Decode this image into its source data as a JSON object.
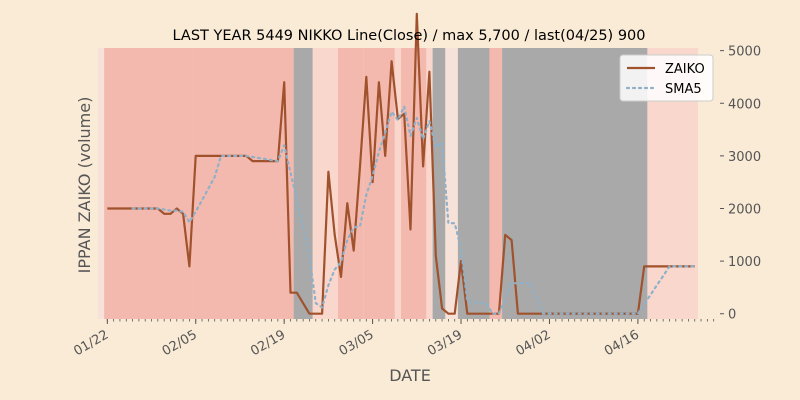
{
  "chart_data": {
    "type": "line",
    "title": "LAST YEAR 5449 NIKKO Line(Close) / max 5,700 / last(04/25) 900",
    "xlabel": "DATE",
    "ylabel": "IPPAN ZAIKO (volume)",
    "ylim": [
      -100,
      5050
    ],
    "yticks": [
      0,
      1000,
      2000,
      3000,
      4000,
      5000
    ],
    "yticklabels": [
      "0",
      "1000",
      "2000",
      "3000",
      "4000",
      "5000"
    ],
    "xticks": [
      "2023-01-22",
      "2023-02-05",
      "2023-02-19",
      "2023-03-05",
      "2023-03-19",
      "2023-04-02",
      "2023-04-16"
    ],
    "xticklabels": [
      "01/22",
      "02/05",
      "02/19",
      "03/05",
      "03/19",
      "04/02",
      "04/16"
    ],
    "xlim": [
      "2023-01-21",
      "2023-04-29"
    ],
    "grid": false,
    "legend_position": "top-right",
    "colors": {
      "zaiko": "#a0522d",
      "sma5": "#8fb0c9",
      "dark_band": "#a9a9a9",
      "red_band": "#f4b9ae",
      "light_band": "#f9d7cd",
      "pale_band": "#f6e2d8"
    },
    "series": [
      {
        "name": "ZAIKO",
        "x": [
          "2023-01-22",
          "2023-01-23",
          "2023-01-24",
          "2023-01-25",
          "2023-01-26",
          "2023-01-27",
          "2023-01-28",
          "2023-01-29",
          "2023-01-30",
          "2023-01-31",
          "2023-02-01",
          "2023-02-02",
          "2023-02-03",
          "2023-02-04",
          "2023-02-05",
          "2023-02-06",
          "2023-02-07",
          "2023-02-08",
          "2023-02-09",
          "2023-02-10",
          "2023-02-11",
          "2023-02-12",
          "2023-02-13",
          "2023-02-14",
          "2023-02-15",
          "2023-02-16",
          "2023-02-17",
          "2023-02-18",
          "2023-02-19",
          "2023-02-20",
          "2023-02-21",
          "2023-02-22",
          "2023-02-23",
          "2023-02-24",
          "2023-02-25",
          "2023-02-26",
          "2023-02-27",
          "2023-02-28",
          "2023-03-01",
          "2023-03-02",
          "2023-03-03",
          "2023-03-04",
          "2023-03-05",
          "2023-03-06",
          "2023-03-07",
          "2023-03-08",
          "2023-03-09",
          "2023-03-10",
          "2023-03-11",
          "2023-03-12",
          "2023-03-13",
          "2023-03-14",
          "2023-03-15",
          "2023-03-16",
          "2023-03-17",
          "2023-03-18",
          "2023-03-19",
          "2023-03-20",
          "2023-03-21",
          "2023-03-22",
          "2023-03-23",
          "2023-03-24",
          "2023-03-25",
          "2023-03-26",
          "2023-03-27",
          "2023-03-28",
          "2023-03-29",
          "2023-03-30",
          "2023-03-31",
          "2023-04-01",
          "2023-04-02",
          "2023-04-03",
          "2023-04-04",
          "2023-04-05",
          "2023-04-06",
          "2023-04-07",
          "2023-04-08",
          "2023-04-09",
          "2023-04-10",
          "2023-04-11",
          "2023-04-12",
          "2023-04-13",
          "2023-04-14",
          "2023-04-15",
          "2023-04-16",
          "2023-04-17",
          "2023-04-18",
          "2023-04-19",
          "2023-04-20",
          "2023-04-21",
          "2023-04-22",
          "2023-04-23",
          "2023-04-24",
          "2023-04-25"
        ],
        "values": [
          2000,
          2000,
          2000,
          2000,
          2000,
          2000,
          2000,
          2000,
          2000,
          1900,
          1900,
          2000,
          1900,
          900,
          3000,
          3000,
          3000,
          3000,
          3000,
          3000,
          3000,
          3000,
          3000,
          2900,
          2900,
          2900,
          2900,
          2900,
          4400,
          400,
          400,
          200,
          0,
          0,
          0,
          2700,
          1500,
          700,
          2100,
          1200,
          2800,
          4500,
          2500,
          4400,
          3000,
          4800,
          3700,
          3800,
          1600,
          5700,
          2800,
          4600,
          1100,
          100,
          0,
          0,
          1000,
          0,
          0,
          0,
          0,
          0,
          0,
          1500,
          1400,
          0,
          0,
          0,
          0,
          0,
          0,
          0,
          0,
          0,
          0,
          0,
          0,
          0,
          0,
          0,
          0,
          0,
          0,
          0,
          0,
          900,
          900,
          900,
          900,
          900,
          900,
          900,
          900,
          900
        ]
      },
      {
        "name": "SMA5",
        "x": [
          "2023-01-26",
          "2023-01-27",
          "2023-01-28",
          "2023-01-29",
          "2023-01-30",
          "2023-01-31",
          "2023-02-01",
          "2023-02-02",
          "2023-02-03",
          "2023-02-04",
          "2023-02-05",
          "2023-02-06",
          "2023-02-07",
          "2023-02-08",
          "2023-02-09",
          "2023-02-10",
          "2023-02-11",
          "2023-02-12",
          "2023-02-13",
          "2023-02-14",
          "2023-02-15",
          "2023-02-16",
          "2023-02-17",
          "2023-02-18",
          "2023-02-19",
          "2023-02-20",
          "2023-02-21",
          "2023-02-22",
          "2023-02-23",
          "2023-02-24",
          "2023-02-25",
          "2023-02-26",
          "2023-02-27",
          "2023-02-28",
          "2023-03-01",
          "2023-03-02",
          "2023-03-03",
          "2023-03-04",
          "2023-03-05",
          "2023-03-06",
          "2023-03-07",
          "2023-03-08",
          "2023-03-09",
          "2023-03-10",
          "2023-03-11",
          "2023-03-12",
          "2023-03-13",
          "2023-03-14",
          "2023-03-15",
          "2023-03-16",
          "2023-03-17",
          "2023-03-18",
          "2023-03-19",
          "2023-03-20",
          "2023-03-21",
          "2023-03-22",
          "2023-03-23",
          "2023-03-24",
          "2023-03-25",
          "2023-03-26",
          "2023-03-27",
          "2023-03-28",
          "2023-03-29",
          "2023-03-30",
          "2023-03-31",
          "2023-04-01",
          "2023-04-02",
          "2023-04-03",
          "2023-04-04",
          "2023-04-05",
          "2023-04-06",
          "2023-04-07",
          "2023-04-08",
          "2023-04-09",
          "2023-04-10",
          "2023-04-11",
          "2023-04-12",
          "2023-04-13",
          "2023-04-14",
          "2023-04-15",
          "2023-04-16",
          "2023-04-17",
          "2023-04-18",
          "2023-04-19",
          "2023-04-20",
          "2023-04-21",
          "2023-04-22",
          "2023-04-23",
          "2023-04-24",
          "2023-04-25"
        ],
        "values": [
          2000,
          2000,
          2000,
          2000,
          2000,
          1980,
          1960,
          1960,
          1940,
          1740,
          1940,
          2160,
          2380,
          2600,
          3000,
          3000,
          3000,
          3000,
          3000,
          2980,
          2960,
          2940,
          2920,
          2900,
          3200,
          2680,
          2180,
          1660,
          1080,
          200,
          120,
          540,
          840,
          980,
          1400,
          1640,
          1660,
          2260,
          2620,
          3080,
          3440,
          3840,
          3680,
          3940,
          3380,
          3720,
          3320,
          3660,
          3160,
          3260,
          1720,
          1720,
          1240,
          240,
          220,
          200,
          200,
          0,
          0,
          300,
          580,
          580,
          580,
          580,
          280,
          0,
          0,
          0,
          0,
          0,
          0,
          0,
          0,
          0,
          0,
          0,
          0,
          0,
          0,
          0,
          0,
          180,
          360,
          540,
          720,
          900,
          900,
          900,
          900,
          900
        ]
      }
    ],
    "bands": {
      "dark": [
        [
          "2023-02-21",
          "2023-02-23"
        ],
        [
          "2023-03-15",
          "2023-03-16"
        ],
        [
          "2023-03-19",
          "2023-03-23"
        ],
        [
          "2023-03-26",
          "2023-04-17"
        ]
      ],
      "red": [
        [
          "2023-01-22",
          "2023-02-04"
        ],
        [
          "2023-02-05",
          "2023-02-18"
        ],
        [
          "2023-02-19",
          "2023-02-20"
        ],
        [
          "2023-02-28",
          "2023-03-03"
        ],
        [
          "2023-03-04",
          "2023-03-08"
        ],
        [
          "2023-03-10",
          "2023-03-13"
        ],
        [
          "2023-03-24",
          "2023-03-25"
        ]
      ],
      "light": [
        [
          "2023-02-24",
          "2023-02-27"
        ],
        [
          "2023-03-09",
          "2023-03-09"
        ],
        [
          "2023-03-14",
          "2023-03-14"
        ],
        [
          "2023-04-18",
          "2023-04-25"
        ]
      ],
      "pale": [
        [
          "2023-01-21",
          "2023-01-21"
        ],
        [
          "2023-03-17",
          "2023-03-18"
        ]
      ]
    }
  }
}
